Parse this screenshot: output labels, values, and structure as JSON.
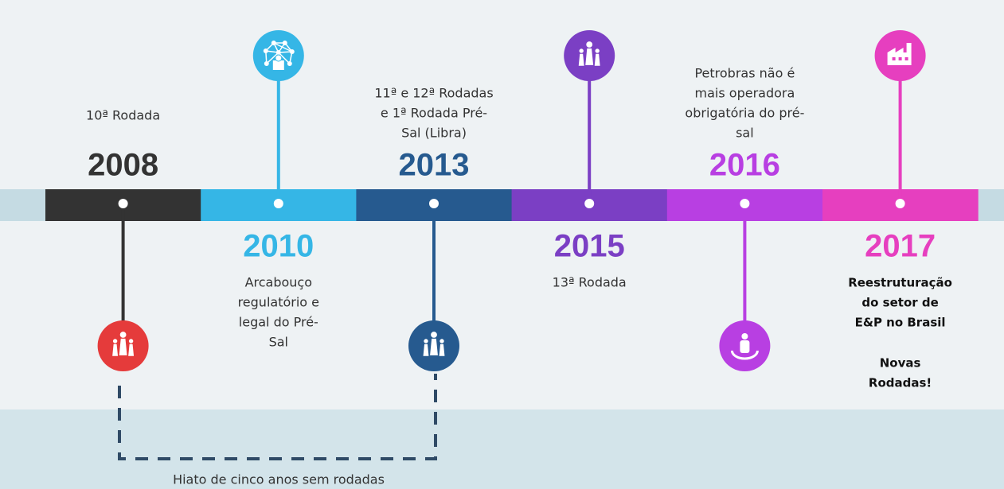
{
  "timeline": {
    "events": [
      {
        "year": "2008",
        "color": "#333333",
        "icon": "chess",
        "position": "above",
        "paragraphs": [
          [
            "10ª Rodada"
          ]
        ]
      },
      {
        "year": "2010",
        "color": "#35b6e6",
        "icon": "network",
        "position": "below",
        "paragraphs": [
          [
            "Arcabouço",
            "regulatório e",
            "legal do Pré-",
            "Sal"
          ]
        ]
      },
      {
        "year": "2013",
        "color": "#265a8f",
        "icon": "chess",
        "position": "above",
        "paragraphs": [
          [
            "11ª e 12ª Rodadas",
            "e 1ª Rodada Pré-",
            "Sal (Libra)"
          ]
        ]
      },
      {
        "year": "2015",
        "color": "#7b3fc4",
        "icon": "chess",
        "position": "below",
        "paragraphs": [
          [
            "13ª Rodada"
          ]
        ]
      },
      {
        "year": "2016",
        "color": "#b83fe2",
        "icon": "person",
        "position": "above",
        "paragraphs": [
          [
            "Petrobras não é",
            "mais operadora",
            "obrigatória do pré-",
            "sal"
          ]
        ]
      },
      {
        "year": "2017",
        "color": "#e63fbf",
        "icon": "factory",
        "position": "below",
        "bold": true,
        "paragraphs": [
          [
            "Reestruturação",
            "do setor de",
            "E&P no Brasil"
          ],
          [
            "Novas",
            "Rodadas!"
          ]
        ]
      }
    ],
    "first_icon_color": "#e53b3b",
    "gap_caption": "Hiato de cinco anos sem rodadas"
  }
}
